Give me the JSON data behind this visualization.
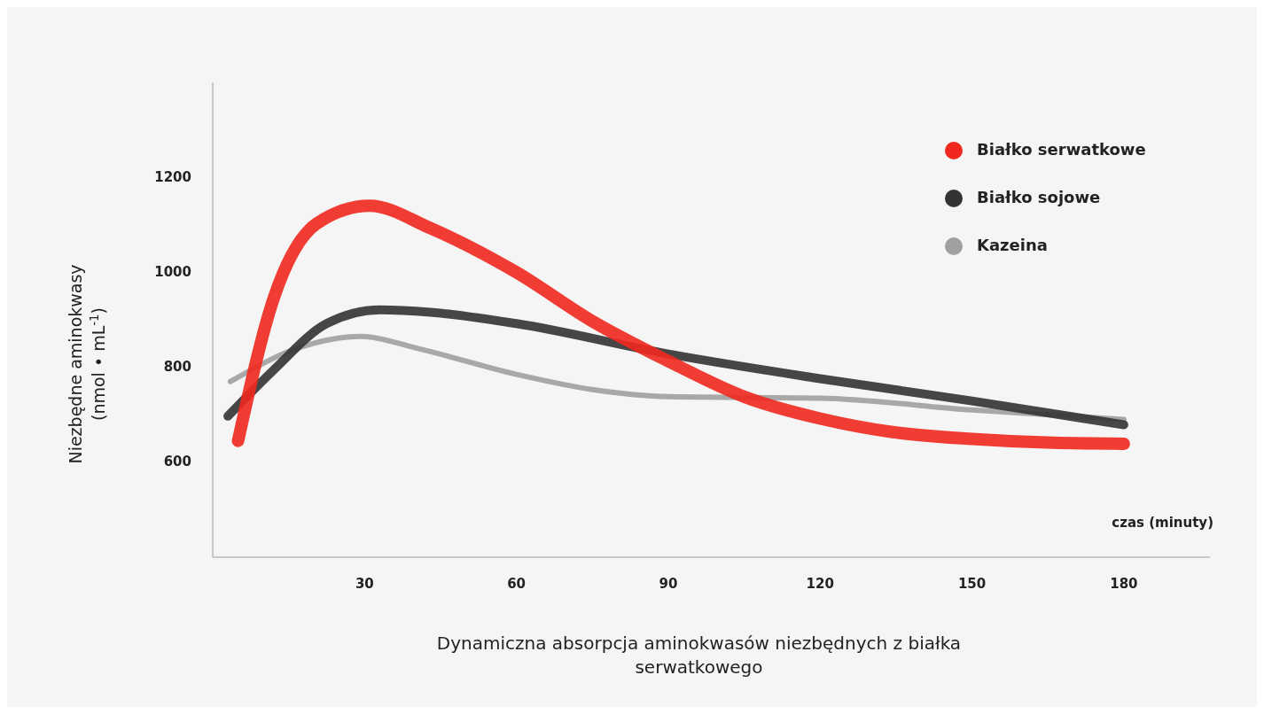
{
  "chart_data": {
    "type": "line",
    "title": "Dynamiczna absorpcja aminokwasów niezbędnych z białka serwatkowego",
    "xlabel": "czas (minuty)",
    "ylabel": "Niezbędne aminokwasy (nmol • mL$^{-1}$)",
    "xlim": [
      0,
      197
    ],
    "xticks": [
      30,
      60,
      90,
      120,
      150,
      180
    ],
    "ylim": [
      400,
      1400
    ],
    "yticks": [
      600,
      800,
      1000,
      1200
    ],
    "grid": false,
    "legend": "top right",
    "marker": "none",
    "line_style": "solid",
    "series": [
      {
        "name": "Białko serwatkowe",
        "color": "#f0281e",
        "x": [
          5,
          12,
          20.6,
          31,
          43,
          60,
          75,
          90,
          105,
          120,
          134,
          150,
          166,
          180
        ],
        "values": [
          645,
          944,
          1103,
          1140,
          1093,
          1000,
          897,
          813,
          738,
          692,
          664,
          649,
          641,
          639
        ]
      },
      {
        "name": "Białko sojowe",
        "color": "#333333",
        "x": [
          3,
          12,
          22.5,
          33,
          43,
          60,
          90,
          120,
          150,
          180
        ],
        "values": [
          697,
          794,
          892,
          921,
          916,
          892,
          828,
          776,
          729,
          679
        ]
      },
      {
        "name": "Kazeina",
        "color": "#a0a0a0",
        "x": [
          3.5,
          17,
          29.4,
          40,
          60,
          75,
          90,
          120,
          150,
          180
        ],
        "values": [
          770,
          841,
          865,
          841,
          785,
          753,
          738,
          735,
          710,
          690
        ]
      }
    ]
  }
}
